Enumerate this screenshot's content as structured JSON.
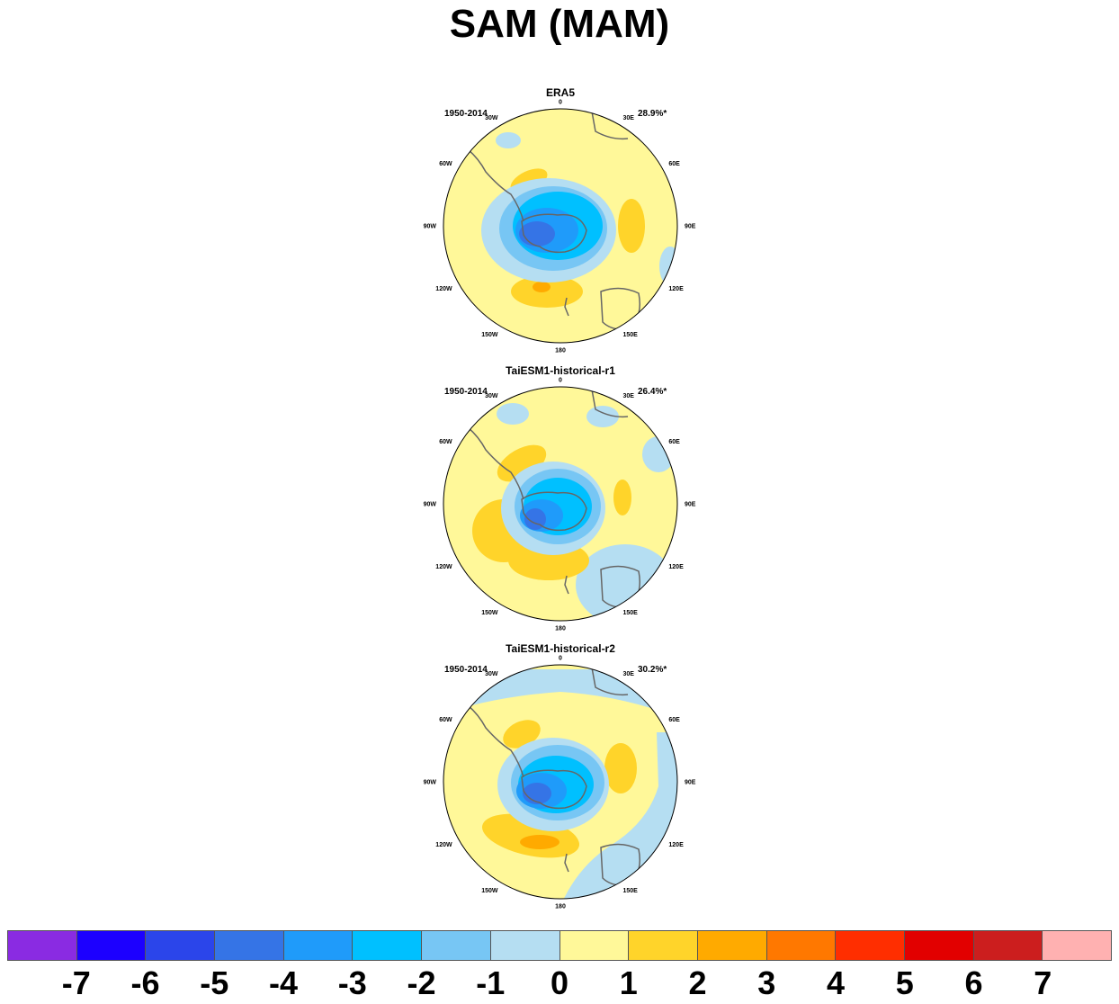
{
  "figure": {
    "title": "SAM (MAM)"
  },
  "panels": [
    {
      "title": "ERA5",
      "period": "1950-2014",
      "variance": "28.9%*"
    },
    {
      "title": "TaiESM1-historical-r1",
      "period": "1950-2014",
      "variance": "26.4%*"
    },
    {
      "title": "TaiESM1-historical-r2",
      "period": "1950-2014",
      "variance": "30.2%*"
    }
  ],
  "longitude_labels": [
    "0",
    "30E",
    "60E",
    "90E",
    "120E",
    "150E",
    "180",
    "150W",
    "120W",
    "90W",
    "60W",
    "30W"
  ],
  "colorbar": {
    "colors": [
      "#8a2be2",
      "#1c00ff",
      "#2b45ea",
      "#3574e6",
      "#1f9bfa",
      "#00c0ff",
      "#77c6f4",
      "#b5def2",
      "#fff899",
      "#ffd42a",
      "#ffaa00",
      "#ff7800",
      "#ff2e00",
      "#e20000",
      "#cc1e1e",
      "#ffb1b1"
    ],
    "labels": [
      "-7",
      "-6",
      "-5",
      "-4",
      "-3",
      "-2",
      "-1",
      "0",
      "1",
      "2",
      "3",
      "4",
      "5",
      "6",
      "7"
    ]
  }
}
